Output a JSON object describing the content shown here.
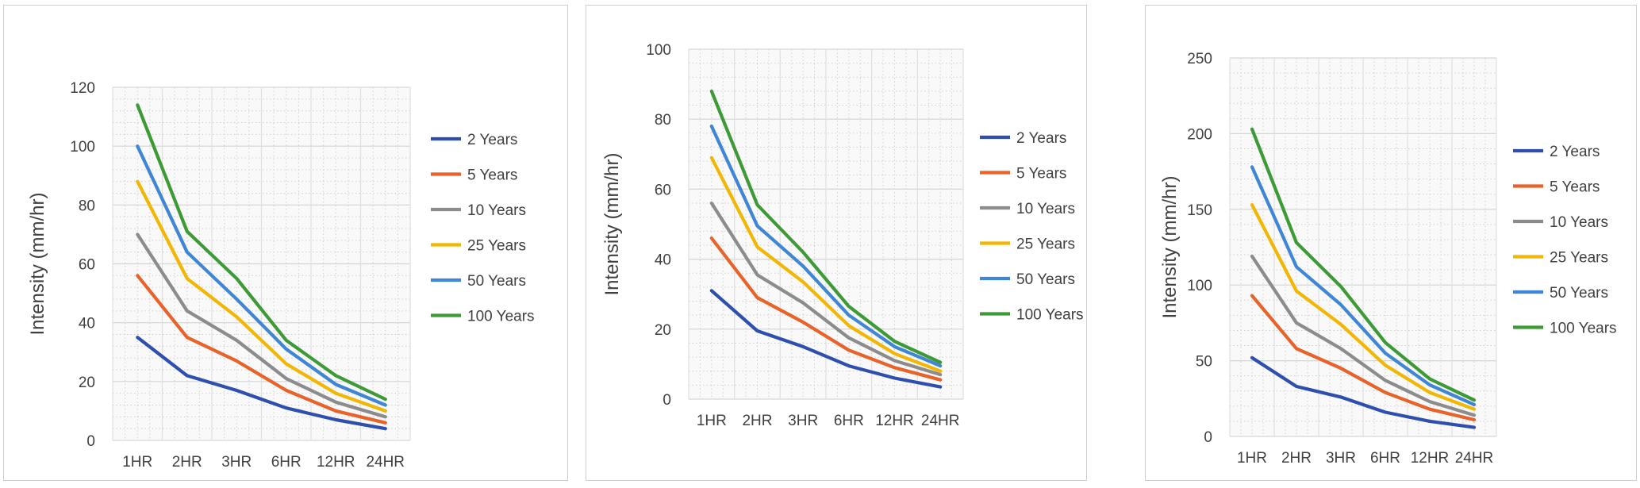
{
  "chart_data": [
    {
      "type": "line",
      "categories": [
        "1HR",
        "2HR",
        "3HR",
        "6HR",
        "12HR",
        "24HR"
      ],
      "ylabel": "Intensity (mm/hr)",
      "ylim": [
        0,
        120
      ],
      "yticks": [
        0,
        20,
        40,
        60,
        80,
        100,
        120
      ],
      "grid": "on (minor dotted)",
      "legend": "right",
      "series": [
        {
          "name": "2 Years",
          "color": "#2F4FAF",
          "values": [
            35,
            22,
            17,
            11,
            7,
            4
          ]
        },
        {
          "name": "5 Years",
          "color": "#E8622A",
          "values": [
            56,
            35,
            27,
            17,
            10,
            6
          ]
        },
        {
          "name": "10 Years",
          "color": "#8C8C8C",
          "values": [
            70,
            44,
            34,
            21,
            13,
            8
          ]
        },
        {
          "name": "25 Years",
          "color": "#F2B705",
          "values": [
            88,
            55,
            42,
            26,
            16,
            10
          ]
        },
        {
          "name": "50 Years",
          "color": "#3F86D6",
          "values": [
            100,
            64,
            48,
            31,
            19,
            12
          ]
        },
        {
          "name": "100 Years",
          "color": "#3E9A37",
          "values": [
            114,
            71,
            55,
            34,
            22,
            14
          ]
        }
      ]
    },
    {
      "type": "line",
      "categories": [
        "1HR",
        "2HR",
        "3HR",
        "6HR",
        "12HR",
        "24HR"
      ],
      "ylabel": "Intensity (mm/hr)",
      "ylim": [
        0,
        100
      ],
      "yticks": [
        0,
        20,
        40,
        60,
        80,
        100
      ],
      "grid": "on (minor dotted)",
      "legend": "right",
      "series": [
        {
          "name": "2 Years",
          "color": "#2F4FAF",
          "values": [
            31,
            19.5,
            15,
            9.5,
            6,
            3.5
          ]
        },
        {
          "name": "5 Years",
          "color": "#E8622A",
          "values": [
            46,
            29,
            22,
            14,
            9,
            5.5
          ]
        },
        {
          "name": "10 Years",
          "color": "#8C8C8C",
          "values": [
            56,
            35.5,
            27.5,
            17.5,
            11,
            7
          ]
        },
        {
          "name": "25 Years",
          "color": "#F2B705",
          "values": [
            69,
            43.5,
            33.5,
            21,
            13,
            8
          ]
        },
        {
          "name": "50 Years",
          "color": "#3F86D6",
          "values": [
            78,
            49.5,
            38,
            24,
            15,
            9.5
          ]
        },
        {
          "name": "100 Years",
          "color": "#3E9A37",
          "values": [
            88,
            55.5,
            42,
            26.5,
            16.5,
            10.5
          ]
        }
      ]
    },
    {
      "type": "line",
      "categories": [
        "1HR",
        "2HR",
        "3HR",
        "6HR",
        "12HR",
        "24HR"
      ],
      "ylabel": "Intensity (mm/hr)",
      "ylim": [
        0,
        250
      ],
      "yticks": [
        0,
        50,
        100,
        150,
        200,
        250
      ],
      "grid": "on (minor dotted)",
      "legend": "right",
      "series": [
        {
          "name": "2 Years",
          "color": "#2F4FAF",
          "values": [
            52,
            33,
            26,
            16,
            10,
            6
          ]
        },
        {
          "name": "5 Years",
          "color": "#E8622A",
          "values": [
            93,
            58,
            45,
            29,
            18,
            11
          ]
        },
        {
          "name": "10 Years",
          "color": "#8C8C8C",
          "values": [
            119,
            75,
            58,
            37,
            23,
            14
          ]
        },
        {
          "name": "25 Years",
          "color": "#F2B705",
          "values": [
            153,
            96,
            74,
            47,
            29,
            18
          ]
        },
        {
          "name": "50 Years",
          "color": "#3F86D6",
          "values": [
            178,
            112,
            87,
            55,
            34,
            21
          ]
        },
        {
          "name": "100 Years",
          "color": "#3E9A37",
          "values": [
            203,
            128,
            99,
            62,
            38,
            24
          ]
        }
      ]
    }
  ]
}
